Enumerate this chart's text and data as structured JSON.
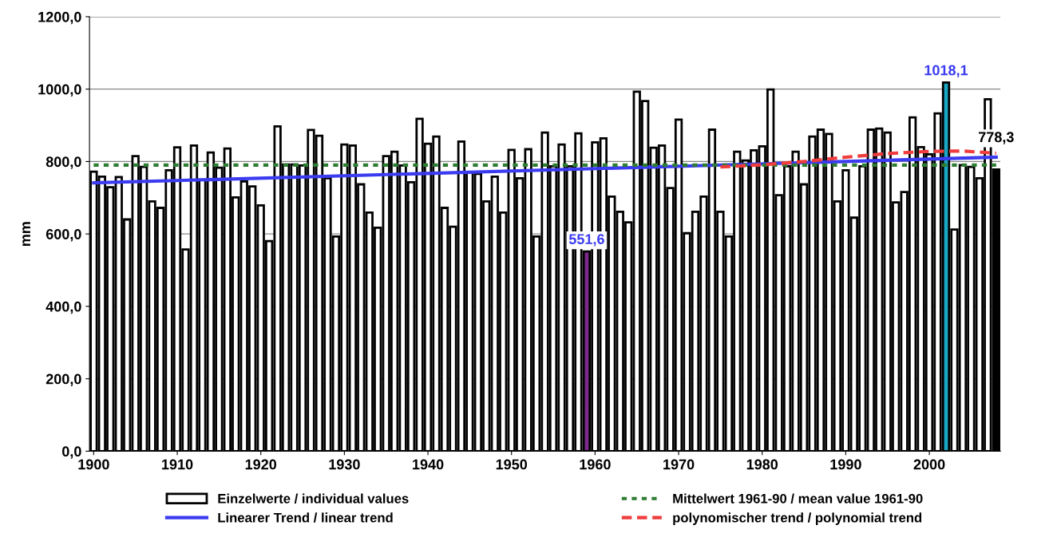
{
  "chart_data": {
    "type": "bar",
    "ylabel": "mm",
    "x": [
      1900,
      1901,
      1902,
      1903,
      1904,
      1905,
      1906,
      1907,
      1908,
      1909,
      1910,
      1911,
      1912,
      1913,
      1914,
      1915,
      1916,
      1917,
      1918,
      1919,
      1920,
      1921,
      1922,
      1923,
      1924,
      1925,
      1926,
      1927,
      1928,
      1929,
      1930,
      1931,
      1932,
      1933,
      1934,
      1935,
      1936,
      1937,
      1938,
      1939,
      1940,
      1941,
      1942,
      1943,
      1944,
      1945,
      1946,
      1947,
      1948,
      1949,
      1950,
      1951,
      1952,
      1953,
      1954,
      1955,
      1956,
      1957,
      1958,
      1959,
      1960,
      1961,
      1962,
      1963,
      1964,
      1965,
      1966,
      1967,
      1968,
      1969,
      1970,
      1971,
      1972,
      1973,
      1974,
      1975,
      1976,
      1977,
      1978,
      1979,
      1980,
      1981,
      1982,
      1983,
      1984,
      1985,
      1986,
      1987,
      1988,
      1989,
      1990,
      1991,
      1992,
      1993,
      1994,
      1995,
      1996,
      1997,
      1998,
      1999,
      2000,
      2001,
      2002,
      2003,
      2004,
      2005,
      2006,
      2007,
      2008
    ],
    "series": [
      {
        "name": "Einzelwerte / individual values",
        "colors": [
          "#ffffff",
          "#ffffff",
          "#ffffff",
          "#ffffff",
          "#ffffff",
          "#ffffff",
          "#ffffff",
          "#ffffff",
          "#ffffff",
          "#ffffff",
          "#ffffff",
          "#ffffff",
          "#ffffff",
          "#ffffff",
          "#ffffff",
          "#ffffff",
          "#ffffff",
          "#ffffff",
          "#ffffff",
          "#ffffff",
          "#ffffff",
          "#ffffff",
          "#ffffff",
          "#ffffff",
          "#ffffff",
          "#ffffff",
          "#ffffff",
          "#ffffff",
          "#ffffff",
          "#ffffff",
          "#ffffff",
          "#ffffff",
          "#ffffff",
          "#ffffff",
          "#ffffff",
          "#ffffff",
          "#ffffff",
          "#ffffff",
          "#ffffff",
          "#ffffff",
          "#ffffff",
          "#ffffff",
          "#ffffff",
          "#ffffff",
          "#ffffff",
          "#ffffff",
          "#ffffff",
          "#ffffff",
          "#ffffff",
          "#ffffff",
          "#ffffff",
          "#ffffff",
          "#ffffff",
          "#ffffff",
          "#ffffff",
          "#ffffff",
          "#ffffff",
          "#ffffff",
          "#ffffff",
          "#7b2a8c",
          "#ffffff",
          "#ffffff",
          "#ffffff",
          "#ffffff",
          "#ffffff",
          "#ffffff",
          "#ffffff",
          "#ffffff",
          "#ffffff",
          "#ffffff",
          "#ffffff",
          "#ffffff",
          "#ffffff",
          "#ffffff",
          "#ffffff",
          "#ffffff",
          "#ffffff",
          "#ffffff",
          "#ffffff",
          "#ffffff",
          "#ffffff",
          "#ffffff",
          "#ffffff",
          "#ffffff",
          "#ffffff",
          "#ffffff",
          "#ffffff",
          "#ffffff",
          "#ffffff",
          "#ffffff",
          "#ffffff",
          "#ffffff",
          "#ffffff",
          "#ffffff",
          "#ffffff",
          "#ffffff",
          "#ffffff",
          "#ffffff",
          "#ffffff",
          "#ffffff",
          "#ffffff",
          "#ffffff",
          "#1aa6c4",
          "#ffffff",
          "#ffffff",
          "#ffffff",
          "#ffffff",
          "#ffffff",
          "#000000"
        ],
        "values": [
          772,
          758,
          729,
          757,
          640,
          815,
          785,
          690,
          672,
          776,
          839,
          557,
          844,
          750,
          825,
          783,
          836,
          701,
          745,
          731,
          679,
          580,
          897,
          792,
          792,
          789,
          887,
          871,
          754,
          593,
          847,
          844,
          737,
          659,
          617,
          815,
          827,
          789,
          743,
          918,
          849,
          869,
          672,
          620,
          855,
          770,
          766,
          690,
          758,
          659,
          832,
          754,
          834,
          593,
          880,
          787,
          847,
          787,
          878,
          551.6,
          853,
          864,
          703,
          661,
          632,
          993,
          967,
          838,
          844,
          727,
          916,
          602,
          661,
          703,
          888,
          661,
          593,
          827,
          803,
          831,
          842,
          999,
          707,
          787,
          827,
          737,
          869,
          888,
          876,
          690,
          776,
          645,
          787,
          888,
          891,
          880,
          687,
          716,
          922,
          840,
          820,
          933,
          1018.1,
          612,
          790,
          785,
          754,
          972,
          778.3
        ],
        "value_labels": [
          null,
          null,
          null,
          null,
          null,
          null,
          null,
          null,
          null,
          null,
          null,
          null,
          null,
          null,
          null,
          null,
          null,
          null,
          null,
          null,
          null,
          null,
          null,
          null,
          null,
          null,
          null,
          null,
          null,
          null,
          null,
          null,
          null,
          null,
          null,
          null,
          null,
          null,
          null,
          null,
          null,
          null,
          null,
          null,
          null,
          null,
          null,
          null,
          null,
          null,
          null,
          null,
          null,
          null,
          null,
          null,
          null,
          null,
          null,
          "551,6",
          null,
          null,
          null,
          null,
          null,
          null,
          null,
          null,
          null,
          null,
          null,
          null,
          null,
          null,
          null,
          null,
          null,
          null,
          null,
          null,
          null,
          null,
          null,
          null,
          null,
          null,
          null,
          null,
          null,
          null,
          null,
          null,
          null,
          null,
          null,
          null,
          null,
          null,
          null,
          null,
          null,
          null,
          "1018,1",
          null,
          null,
          null,
          null,
          null,
          "778,3"
        ]
      },
      {
        "name": "Linearer Trend / linear trend",
        "type": "line",
        "color": "#3b3bf0",
        "line_style": "solid",
        "x": [
          1900,
          2008
        ],
        "values": [
          741,
          812
        ]
      },
      {
        "name": "Mittelwert 1961-90 / mean value 1961-90",
        "type": "line",
        "color": "#2e7d32",
        "line_style": "dotted",
        "x": [
          1900,
          2008
        ],
        "values": [
          790,
          790
        ]
      },
      {
        "name": "polynomischer trend / polynomial trend",
        "type": "line",
        "color": "#f03c3c",
        "line_style": "dashed",
        "x": [
          1975,
          1980,
          1985,
          1990,
          1995,
          2000,
          2004,
          2008
        ],
        "values": [
          785,
          791,
          800,
          812,
          822,
          828,
          829,
          823
        ]
      }
    ],
    "xlim": [
      1899.5,
      2008.5
    ],
    "xticks": [
      1900,
      1910,
      1920,
      1930,
      1940,
      1950,
      1960,
      1970,
      1980,
      1990,
      2000
    ],
    "ylim": [
      0,
      1200
    ],
    "yticks": [
      {
        "value": 0,
        "label": "0,0"
      },
      {
        "value": 200,
        "label": "200,0"
      },
      {
        "value": 400,
        "label": "400,0"
      },
      {
        "value": 600,
        "label": "600,0"
      },
      {
        "value": 800,
        "label": "800,0"
      },
      {
        "value": 1000,
        "label": "1000,0"
      },
      {
        "value": 1200,
        "label": "1200,0"
      }
    ],
    "grid": "y",
    "legend": "bottom"
  }
}
